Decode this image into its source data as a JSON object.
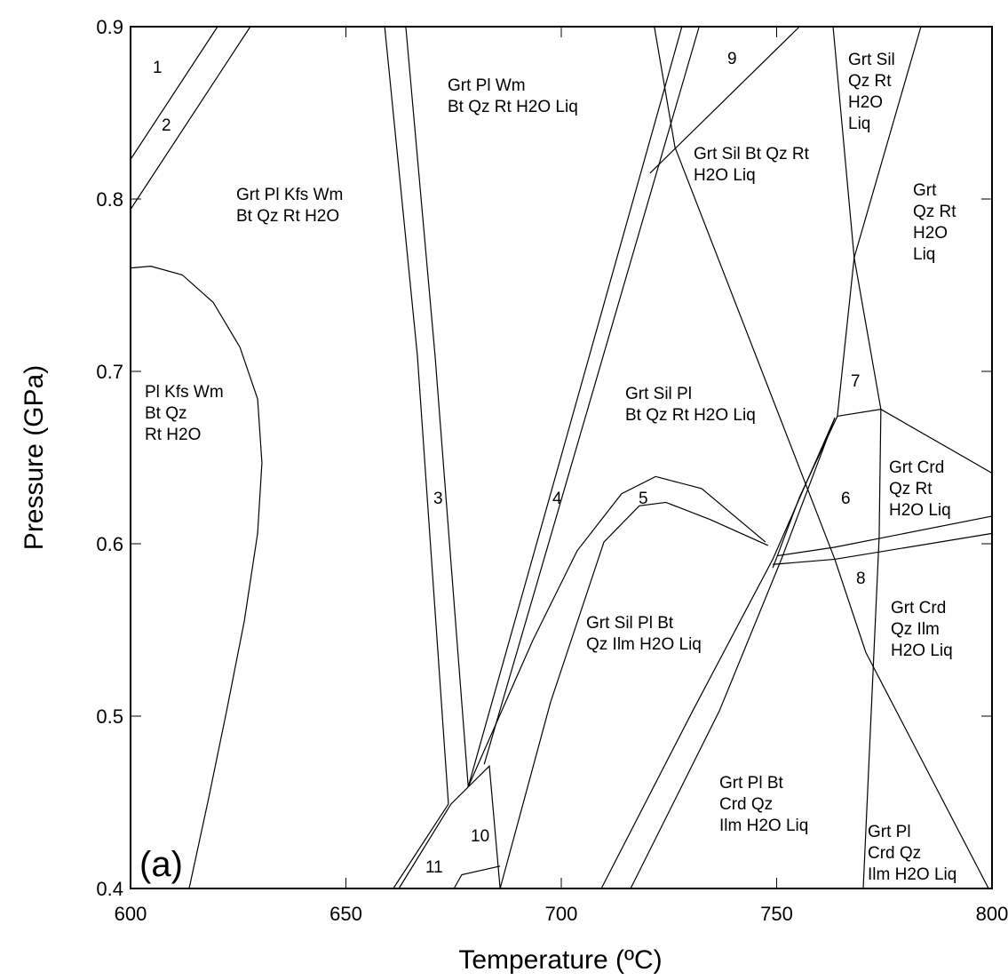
{
  "chart_data": {
    "type": "line",
    "xlabel": "Temperature (ºC)",
    "ylabel": "Pressure (GPa)",
    "panel_label": "(a)",
    "xlim": [
      600,
      800
    ],
    "ylim": [
      0.4,
      0.9
    ],
    "xticks": [
      600,
      650,
      700,
      750,
      800
    ],
    "yticks": [
      0.4,
      0.5,
      0.6,
      0.7,
      0.8,
      0.9
    ],
    "color": "#000000",
    "series": [
      {
        "x": [
          600,
          620.2
        ],
        "y": [
          0.823,
          0.9
        ]
      },
      {
        "x": [
          600,
          627.8
        ],
        "y": [
          0.794,
          0.9
        ]
      },
      {
        "x": [
          600,
          604.7,
          612.0,
          619.2,
          625.4,
          629.5,
          630.5,
          629.5,
          626.4,
          622.3,
          618.1,
          613.6
        ],
        "y": [
          0.76,
          0.761,
          0.756,
          0.74,
          0.714,
          0.684,
          0.647,
          0.606,
          0.555,
          0.503,
          0.452,
          0.4
        ]
      },
      {
        "x": [
          659.0,
          666.6,
          673.8
        ],
        "y": [
          0.9,
          0.709,
          0.449
        ]
      },
      {
        "x": [
          663.9,
          670.7,
          678.4
        ],
        "y": [
          0.9,
          0.709,
          0.459
        ]
      },
      {
        "x": [
          678.4,
          728.0
        ],
        "y": [
          0.459,
          0.9
        ]
      },
      {
        "x": [
          682.1,
          732.0
        ],
        "y": [
          0.472,
          0.9
        ]
      },
      {
        "x": [
          721.6,
          726.4,
          751.1,
          763.5,
          770.7,
          799.2
        ],
        "y": [
          0.9,
          0.83,
          0.671,
          0.591,
          0.537,
          0.4
        ]
      },
      {
        "x": [
          755.3,
          720.6
        ],
        "y": [
          0.9,
          0.815
        ]
      },
      {
        "x": [
          763.1,
          768.0,
          764.1,
          755.3,
          749.1
        ],
        "y": [
          0.9,
          0.766,
          0.674,
          0.627,
          0.586
        ]
      },
      {
        "x": [
          783.5,
          768.0,
          774.2,
          773.8,
          770.1
        ],
        "y": [
          0.9,
          0.766,
          0.678,
          0.604,
          0.4
        ]
      },
      {
        "x": [
          764.1,
          774.2,
          800
        ],
        "y": [
          0.674,
          0.678,
          0.641
        ]
      },
      {
        "x": [
          750.1,
          763.5,
          800
        ],
        "y": [
          0.593,
          0.598,
          0.616
        ]
      },
      {
        "x": [
          749.1,
          763.5,
          800
        ],
        "y": [
          0.588,
          0.591,
          0.606
        ]
      },
      {
        "x": [
          678.4,
          693.4,
          703.7,
          714.0,
          721.9,
          732.6,
          747.4
        ],
        "y": [
          0.459,
          0.544,
          0.596,
          0.629,
          0.639,
          0.632,
          0.601
        ]
      },
      {
        "x": [
          685.8,
          697.5,
          709.9,
          718.1,
          724.3,
          734.6,
          748.0
        ],
        "y": [
          0.4,
          0.508,
          0.601,
          0.622,
          0.624,
          0.614,
          0.599
        ]
      },
      {
        "x": [
          709.3,
          730.5,
          749.1,
          763.5
        ],
        "y": [
          0.4,
          0.503,
          0.591,
          0.673
        ]
      },
      {
        "x": [
          716.1,
          736.7,
          751.1,
          763.5
        ],
        "y": [
          0.4,
          0.503,
          0.591,
          0.673
        ]
      },
      {
        "x": [
          661.0,
          673.8
        ],
        "y": [
          0.4,
          0.449
        ]
      },
      {
        "x": [
          662.3,
          674.4
        ],
        "y": [
          0.4,
          0.449
        ]
      },
      {
        "x": [
          674.4,
          683.3,
          685.8
        ],
        "y": [
          0.449,
          0.471,
          0.4
        ]
      },
      {
        "x": [
          675.1,
          676.9,
          685.8
        ],
        "y": [
          0.4,
          0.408,
          0.413
        ]
      }
    ],
    "field_labels": [
      [
        "1"
      ],
      [
        "2"
      ],
      [
        "Grt  Pl Kfs Wm",
        "Bt Qz Rt H2O"
      ],
      [
        "Pl Kfs Wm",
        "Bt Qz",
        "Rt H2O"
      ],
      [
        "3"
      ],
      [
        "4"
      ],
      [
        "5"
      ],
      [
        "Grt Pl Wm",
        "Bt Qz Rt H2O Liq"
      ],
      [
        "9"
      ],
      [
        "Grt Sil Bt Qz Rt",
        "H2O Liq"
      ],
      [
        "Grt Sil",
        "Qz Rt",
        "H2O",
        "Liq"
      ],
      [
        "Grt",
        "Qz Rt",
        "H2O",
        "Liq"
      ],
      [
        "7"
      ],
      [
        "Grt Sil Pl",
        "Bt Qz Rt H2O Liq"
      ],
      [
        "Grt Crd",
        "Qz Rt",
        "H2O Liq"
      ],
      [
        "6"
      ],
      [
        "8"
      ],
      [
        "Grt Crd",
        "Qz Ilm",
        "H2O Liq"
      ],
      [
        "Grt Sil Pl Bt",
        "Qz Ilm H2O Liq"
      ],
      [
        "Grt Pl Bt",
        "Crd Qz",
        "Ilm H2O Liq"
      ],
      [
        "Grt Pl",
        "Crd Qz",
        "Ilm H2O Liq"
      ],
      [
        "10"
      ],
      [
        "11"
      ]
    ]
  }
}
